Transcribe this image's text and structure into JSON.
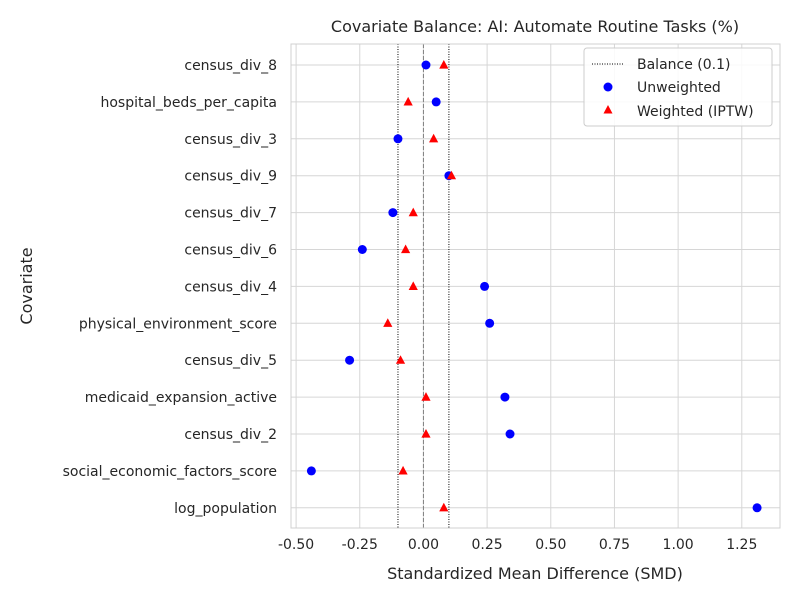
{
  "chart_data": {
    "type": "scatter",
    "title": "Covariate Balance: AI: Automate Routine Tasks (%)",
    "xlabel": "Standardized Mean Difference (SMD)",
    "ylabel": "Covariate",
    "xlim": [
      -0.52,
      1.4
    ],
    "x_ticks": [
      "-0.50",
      "-0.25",
      "0.00",
      "0.25",
      "0.50",
      "0.75",
      "1.00",
      "1.25"
    ],
    "x_tick_values": [
      -0.5,
      -0.25,
      0.0,
      0.25,
      0.5,
      0.75,
      1.0,
      1.25
    ],
    "categories": [
      "census_div_8",
      "hospital_beds_per_capita",
      "census_div_3",
      "census_div_9",
      "census_div_7",
      "census_div_6",
      "census_div_4",
      "physical_environment_score",
      "census_div_5",
      "medicaid_expansion_active",
      "census_div_2",
      "social_economic_factors_score",
      "log_population"
    ],
    "series": [
      {
        "name": "Unweighted",
        "marker": "circle",
        "color": "#0000ff",
        "values": [
          0.01,
          0.05,
          -0.1,
          0.1,
          -0.12,
          -0.24,
          0.24,
          0.26,
          -0.29,
          0.32,
          0.34,
          -0.44,
          1.31
        ]
      },
      {
        "name": "Weighted (IPTW)",
        "marker": "triangle",
        "color": "#ff0000",
        "values": [
          0.08,
          -0.06,
          0.04,
          0.11,
          -0.04,
          -0.07,
          -0.04,
          -0.14,
          -0.09,
          0.01,
          0.01,
          -0.08,
          0.08
        ]
      }
    ],
    "reference_lines": [
      {
        "x": 0.0,
        "style": "dashed",
        "color": "#808080"
      },
      {
        "x": -0.1,
        "style": "dotted",
        "color": "#000000"
      },
      {
        "x": 0.1,
        "style": "dotted",
        "color": "#000000"
      }
    ],
    "legend": {
      "placement": "top-right",
      "entries": [
        "Balance (0.1)",
        "Unweighted",
        "Weighted (IPTW)"
      ]
    },
    "grid": true
  }
}
